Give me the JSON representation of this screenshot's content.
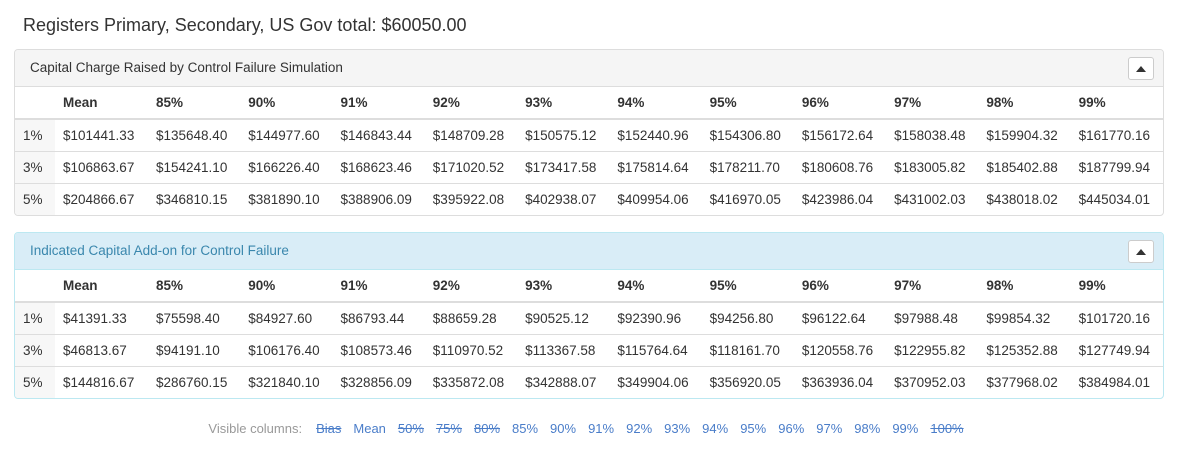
{
  "page": {
    "title": "Registers Primary, Secondary, US Gov total: $60050.00"
  },
  "columns": [
    "Mean",
    "85%",
    "90%",
    "91%",
    "92%",
    "93%",
    "94%",
    "95%",
    "96%",
    "97%",
    "98%",
    "99%"
  ],
  "panels": [
    {
      "title": "Capital Charge Raised by Control Failure Simulation",
      "style": "default",
      "collapse_icon": "chevron-up-icon",
      "rows": [
        {
          "label": "1%",
          "values": [
            "$101441.33",
            "$135648.40",
            "$144977.60",
            "$146843.44",
            "$148709.28",
            "$150575.12",
            "$152440.96",
            "$154306.80",
            "$156172.64",
            "$158038.48",
            "$159904.32",
            "$161770.16"
          ]
        },
        {
          "label": "3%",
          "values": [
            "$106863.67",
            "$154241.10",
            "$166226.40",
            "$168623.46",
            "$171020.52",
            "$173417.58",
            "$175814.64",
            "$178211.70",
            "$180608.76",
            "$183005.82",
            "$185402.88",
            "$187799.94"
          ]
        },
        {
          "label": "5%",
          "values": [
            "$204866.67",
            "$346810.15",
            "$381890.10",
            "$388906.09",
            "$395922.08",
            "$402938.07",
            "$409954.06",
            "$416970.05",
            "$423986.04",
            "$431002.03",
            "$438018.02",
            "$445034.01"
          ]
        }
      ]
    },
    {
      "title": "Indicated Capital Add-on for Control Failure",
      "style": "info",
      "collapse_icon": "chevron-up-icon",
      "rows": [
        {
          "label": "1%",
          "values": [
            "$41391.33",
            "$75598.40",
            "$84927.60",
            "$86793.44",
            "$88659.28",
            "$90525.12",
            "$92390.96",
            "$94256.80",
            "$96122.64",
            "$97988.48",
            "$99854.32",
            "$101720.16"
          ]
        },
        {
          "label": "3%",
          "values": [
            "$46813.67",
            "$94191.10",
            "$106176.40",
            "$108573.46",
            "$110970.52",
            "$113367.58",
            "$115764.64",
            "$118161.70",
            "$120558.76",
            "$122955.82",
            "$125352.88",
            "$127749.94"
          ]
        },
        {
          "label": "5%",
          "values": [
            "$144816.67",
            "$286760.15",
            "$321840.10",
            "$328856.09",
            "$335872.08",
            "$342888.07",
            "$349904.06",
            "$356920.05",
            "$363936.04",
            "$370952.03",
            "$377968.02",
            "$384984.01"
          ]
        }
      ]
    }
  ],
  "visible_columns": {
    "label": "Visible columns:",
    "options": [
      {
        "label": "Bias",
        "struck": true
      },
      {
        "label": "Mean",
        "struck": false
      },
      {
        "label": "50%",
        "struck": true
      },
      {
        "label": "75%",
        "struck": true
      },
      {
        "label": "80%",
        "struck": true
      },
      {
        "label": "85%",
        "struck": false
      },
      {
        "label": "90%",
        "struck": false
      },
      {
        "label": "91%",
        "struck": false
      },
      {
        "label": "92%",
        "struck": false
      },
      {
        "label": "93%",
        "struck": false
      },
      {
        "label": "94%",
        "struck": false
      },
      {
        "label": "95%",
        "struck": false
      },
      {
        "label": "96%",
        "struck": false
      },
      {
        "label": "97%",
        "struck": false
      },
      {
        "label": "98%",
        "struck": false
      },
      {
        "label": "99%",
        "struck": false
      },
      {
        "label": "100%",
        "struck": true
      }
    ]
  },
  "colors": {
    "link": "#4a7dc9",
    "panel_default_heading_bg": "#f5f5f5",
    "panel_info_heading_bg": "#d9edf7",
    "panel_info_text": "#3a87ad",
    "panel_info_border": "#bce8f1",
    "table_border": "#dddddd",
    "muted_text": "#999999"
  }
}
